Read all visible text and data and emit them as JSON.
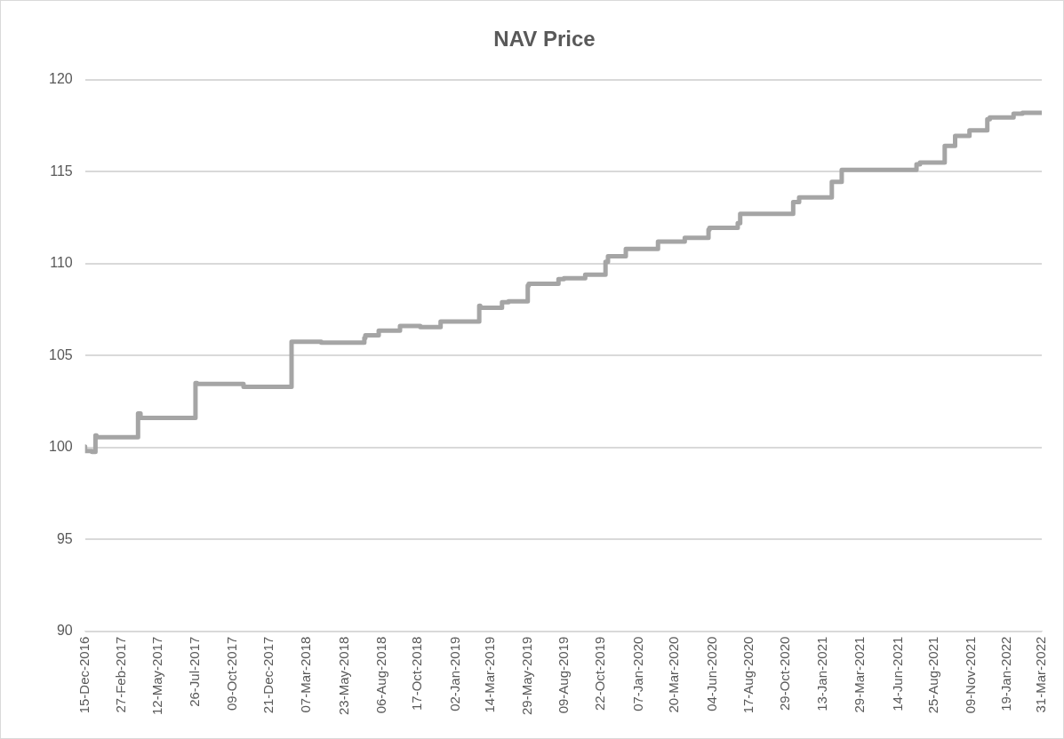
{
  "chart_data": {
    "type": "step",
    "title": "NAV Price",
    "x": [
      "2016-12-15",
      "2016-12-29",
      "2017-01-05",
      "2017-01-07",
      "2017-04-01",
      "2017-04-06",
      "2017-07-26",
      "2017-07-29",
      "2017-10-31",
      "2018-02-05",
      "2018-04-06",
      "2018-07-02",
      "2018-07-04",
      "2018-07-31",
      "2018-09-12",
      "2018-10-23",
      "2018-12-03",
      "2018-12-10",
      "2019-02-19",
      "2019-02-21",
      "2019-04-06",
      "2019-04-19",
      "2019-05-28",
      "2019-05-30",
      "2019-07-29",
      "2019-08-09",
      "2019-09-21",
      "2019-11-01",
      "2019-11-06",
      "2019-12-12",
      "2020-02-15",
      "2020-04-09",
      "2020-05-27",
      "2020-05-29",
      "2020-07-25",
      "2020-07-30",
      "2020-11-14",
      "2020-11-26",
      "2021-01-31",
      "2021-02-20",
      "2021-07-21",
      "2021-07-28",
      "2021-09-16",
      "2021-10-07",
      "2021-11-05",
      "2021-12-11",
      "2021-12-16",
      "2022-02-02",
      "2022-02-20",
      "2022-03-31"
    ],
    "series": [
      {
        "color": "#a5a5a5",
        "values": [
          100.05,
          99.8,
          99.75,
          100.65,
          100.55,
          101.85,
          101.6,
          103.5,
          103.45,
          103.3,
          105.75,
          105.7,
          105.95,
          106.1,
          106.35,
          106.6,
          106.55,
          106.85,
          106.85,
          107.7,
          107.6,
          107.9,
          107.95,
          108.8,
          108.9,
          109.15,
          109.2,
          109.4,
          110.1,
          110.4,
          110.8,
          111.2,
          111.4,
          111.85,
          111.95,
          112.2,
          112.7,
          113.35,
          113.6,
          114.45,
          115.1,
          115.4,
          115.5,
          116.4,
          116.95,
          117.25,
          117.85,
          117.95,
          118.15,
          118.2
        ]
      }
    ],
    "xlim": [
      "2016-12-15",
      "2022-03-31"
    ],
    "xticks": [
      {
        "value": "2016-12-15",
        "label": "15-Dec-2016"
      },
      {
        "value": "2017-02-27",
        "label": "27-Feb-2017"
      },
      {
        "value": "2017-05-12",
        "label": "12-May-2017"
      },
      {
        "value": "2017-07-26",
        "label": "26-Jul-2017"
      },
      {
        "value": "2017-10-09",
        "label": "09-Oct-2017"
      },
      {
        "value": "2017-12-21",
        "label": "21-Dec-2017"
      },
      {
        "value": "2018-03-07",
        "label": "07-Mar-2018"
      },
      {
        "value": "2018-05-23",
        "label": "23-May-2018"
      },
      {
        "value": "2018-08-06",
        "label": "06-Aug-2018"
      },
      {
        "value": "2018-10-17",
        "label": "17-Oct-2018"
      },
      {
        "value": "2019-01-02",
        "label": "02-Jan-2019"
      },
      {
        "value": "2019-03-14",
        "label": "14-Mar-2019"
      },
      {
        "value": "2019-05-29",
        "label": "29-May-2019"
      },
      {
        "value": "2019-08-09",
        "label": "09-Aug-2019"
      },
      {
        "value": "2019-10-22",
        "label": "22-Oct-2019"
      },
      {
        "value": "2020-01-07",
        "label": "07-Jan-2020"
      },
      {
        "value": "2020-03-20",
        "label": "20-Mar-2020"
      },
      {
        "value": "2020-06-04",
        "label": "04-Jun-2020"
      },
      {
        "value": "2020-08-17",
        "label": "17-Aug-2020"
      },
      {
        "value": "2020-10-29",
        "label": "29-Oct-2020"
      },
      {
        "value": "2021-01-13",
        "label": "13-Jan-2021"
      },
      {
        "value": "2021-03-29",
        "label": "29-Mar-2021"
      },
      {
        "value": "2021-06-14",
        "label": "14-Jun-2021"
      },
      {
        "value": "2021-08-25",
        "label": "25-Aug-2021"
      },
      {
        "value": "2021-11-09",
        "label": "09-Nov-2021"
      },
      {
        "value": "2022-01-19",
        "label": "19-Jan-2022"
      },
      {
        "value": "2022-03-31",
        "label": "31-Mar-2022"
      }
    ],
    "ylim": [
      90,
      120
    ],
    "yticks": [
      90,
      95,
      100,
      105,
      110,
      115,
      120
    ],
    "grid": "y",
    "legend": false,
    "marker": "none",
    "line_style": "solid"
  }
}
